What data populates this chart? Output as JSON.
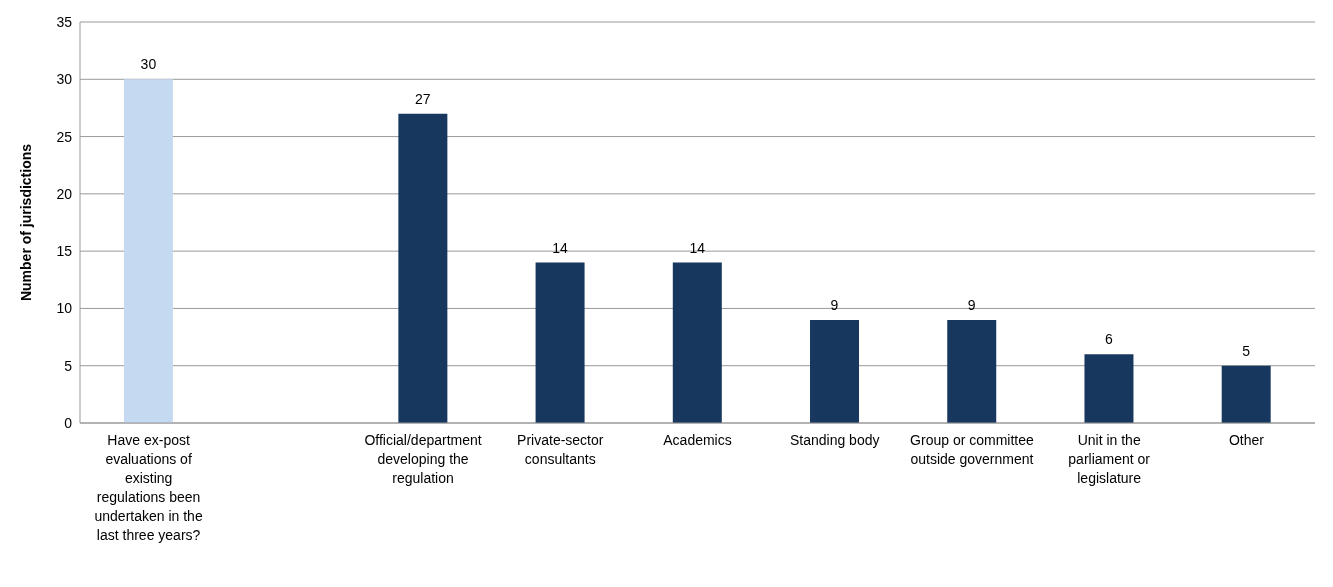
{
  "chart_data": {
    "type": "bar",
    "ylabel": "Number of jurisdictions",
    "categories": [
      "Have ex-post evaluations of existing regulations been undertaken in the last three years?",
      null,
      "Official/department developing the regulation",
      "Private-sector consultants",
      "Academics",
      "Standing body",
      "Group or committee outside government",
      "Unit in the parliament or legislature",
      "Other"
    ],
    "values": [
      30,
      null,
      27,
      14,
      14,
      9,
      9,
      6,
      5
    ],
    "colors": [
      "#c5d9f1",
      "#17375e",
      "#17375e",
      "#17375e",
      "#17375e",
      "#17375e",
      "#17375e",
      "#17375e",
      "#17375e"
    ],
    "ylim": [
      0,
      35
    ],
    "yticks": [
      0,
      5,
      10,
      15,
      20,
      25,
      30,
      35
    ],
    "grid": "y",
    "data_labels": true
  }
}
